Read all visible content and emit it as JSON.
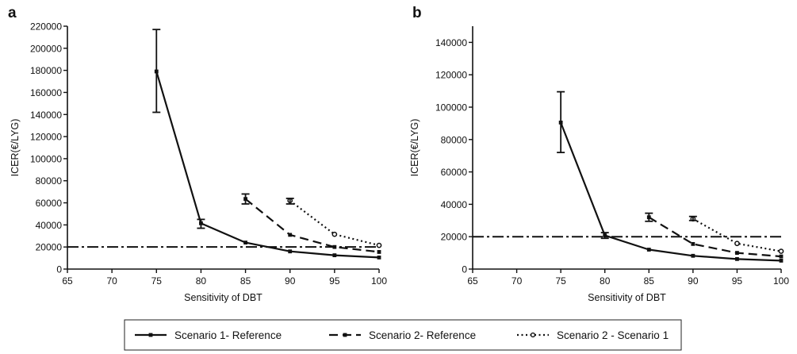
{
  "chart_data": [
    {
      "type": "line",
      "panel": "a",
      "xlabel": "Sensitivity of DBT",
      "ylabel": "ICER(€/LYG)",
      "xlim": [
        65,
        100
      ],
      "ylim": [
        0,
        220000
      ],
      "x_ticks": [
        65,
        70,
        75,
        80,
        85,
        90,
        95,
        100
      ],
      "y_ticks": [
        0,
        20000,
        40000,
        60000,
        80000,
        100000,
        120000,
        140000,
        160000,
        180000,
        200000,
        220000
      ],
      "threshold": 20000,
      "grid": false,
      "series": [
        {
          "name": "Scenario 1- Reference",
          "style": "solid",
          "x": [
            75,
            80,
            85,
            90,
            95,
            100
          ],
          "y": [
            179000,
            41500,
            24000,
            16000,
            12500,
            10500
          ],
          "error": [
            {
              "x": 75,
              "low": 142000,
              "high": 217000
            },
            {
              "x": 80,
              "low": 37000,
              "high": 45000
            }
          ]
        },
        {
          "name": "Scenario 2- Reference",
          "style": "dashed",
          "x": [
            85,
            90,
            95,
            100
          ],
          "y": [
            63500,
            31000,
            20000,
            15500
          ],
          "error": [
            {
              "x": 85,
              "low": 59000,
              "high": 68000
            }
          ]
        },
        {
          "name": "Scenario 2 - Scenario 1",
          "style": "dotted",
          "x": [
            90,
            95,
            100
          ],
          "y": [
            62000,
            31500,
            21500
          ],
          "error": [
            {
              "x": 90,
              "low": 59000,
              "high": 64000
            }
          ]
        }
      ]
    },
    {
      "type": "line",
      "panel": "b",
      "xlabel": "Sensitivity of DBT",
      "ylabel": "ICER(€/LYG)",
      "xlim": [
        65,
        100
      ],
      "ylim": [
        0,
        150000
      ],
      "x_ticks": [
        65,
        70,
        75,
        80,
        85,
        90,
        95,
        100
      ],
      "y_ticks": [
        0,
        20000,
        40000,
        60000,
        80000,
        100000,
        120000,
        140000
      ],
      "threshold": 20000,
      "grid": false,
      "series": [
        {
          "name": "Scenario 1- Reference",
          "style": "solid",
          "x": [
            75,
            80,
            85,
            90,
            95,
            100
          ],
          "y": [
            90500,
            20800,
            12000,
            8200,
            6200,
            5200
          ],
          "error": [
            {
              "x": 75,
              "low": 72000,
              "high": 109500
            },
            {
              "x": 80,
              "low": 19000,
              "high": 22500
            }
          ]
        },
        {
          "name": "Scenario 2- Reference",
          "style": "dashed",
          "x": [
            85,
            90,
            95,
            100
          ],
          "y": [
            32000,
            15500,
            10000,
            7800
          ],
          "error": [
            {
              "x": 85,
              "low": 29500,
              "high": 34500
            }
          ]
        },
        {
          "name": "Scenario 2 - Scenario 1",
          "style": "dotted",
          "x": [
            90,
            95,
            100
          ],
          "y": [
            31000,
            15800,
            11000
          ],
          "error": [
            {
              "x": 90,
              "low": 30000,
              "high": 32500
            }
          ]
        }
      ]
    }
  ],
  "legend": {
    "position": "bottom",
    "entries": [
      {
        "label": "Scenario 1- Reference",
        "style": "solid"
      },
      {
        "label": "Scenario 2- Reference",
        "style": "dashed"
      },
      {
        "label": "Scenario 2 - Scenario 1",
        "style": "dotted"
      }
    ]
  },
  "colors": {
    "ink": "#111111",
    "background": "#ffffff"
  }
}
